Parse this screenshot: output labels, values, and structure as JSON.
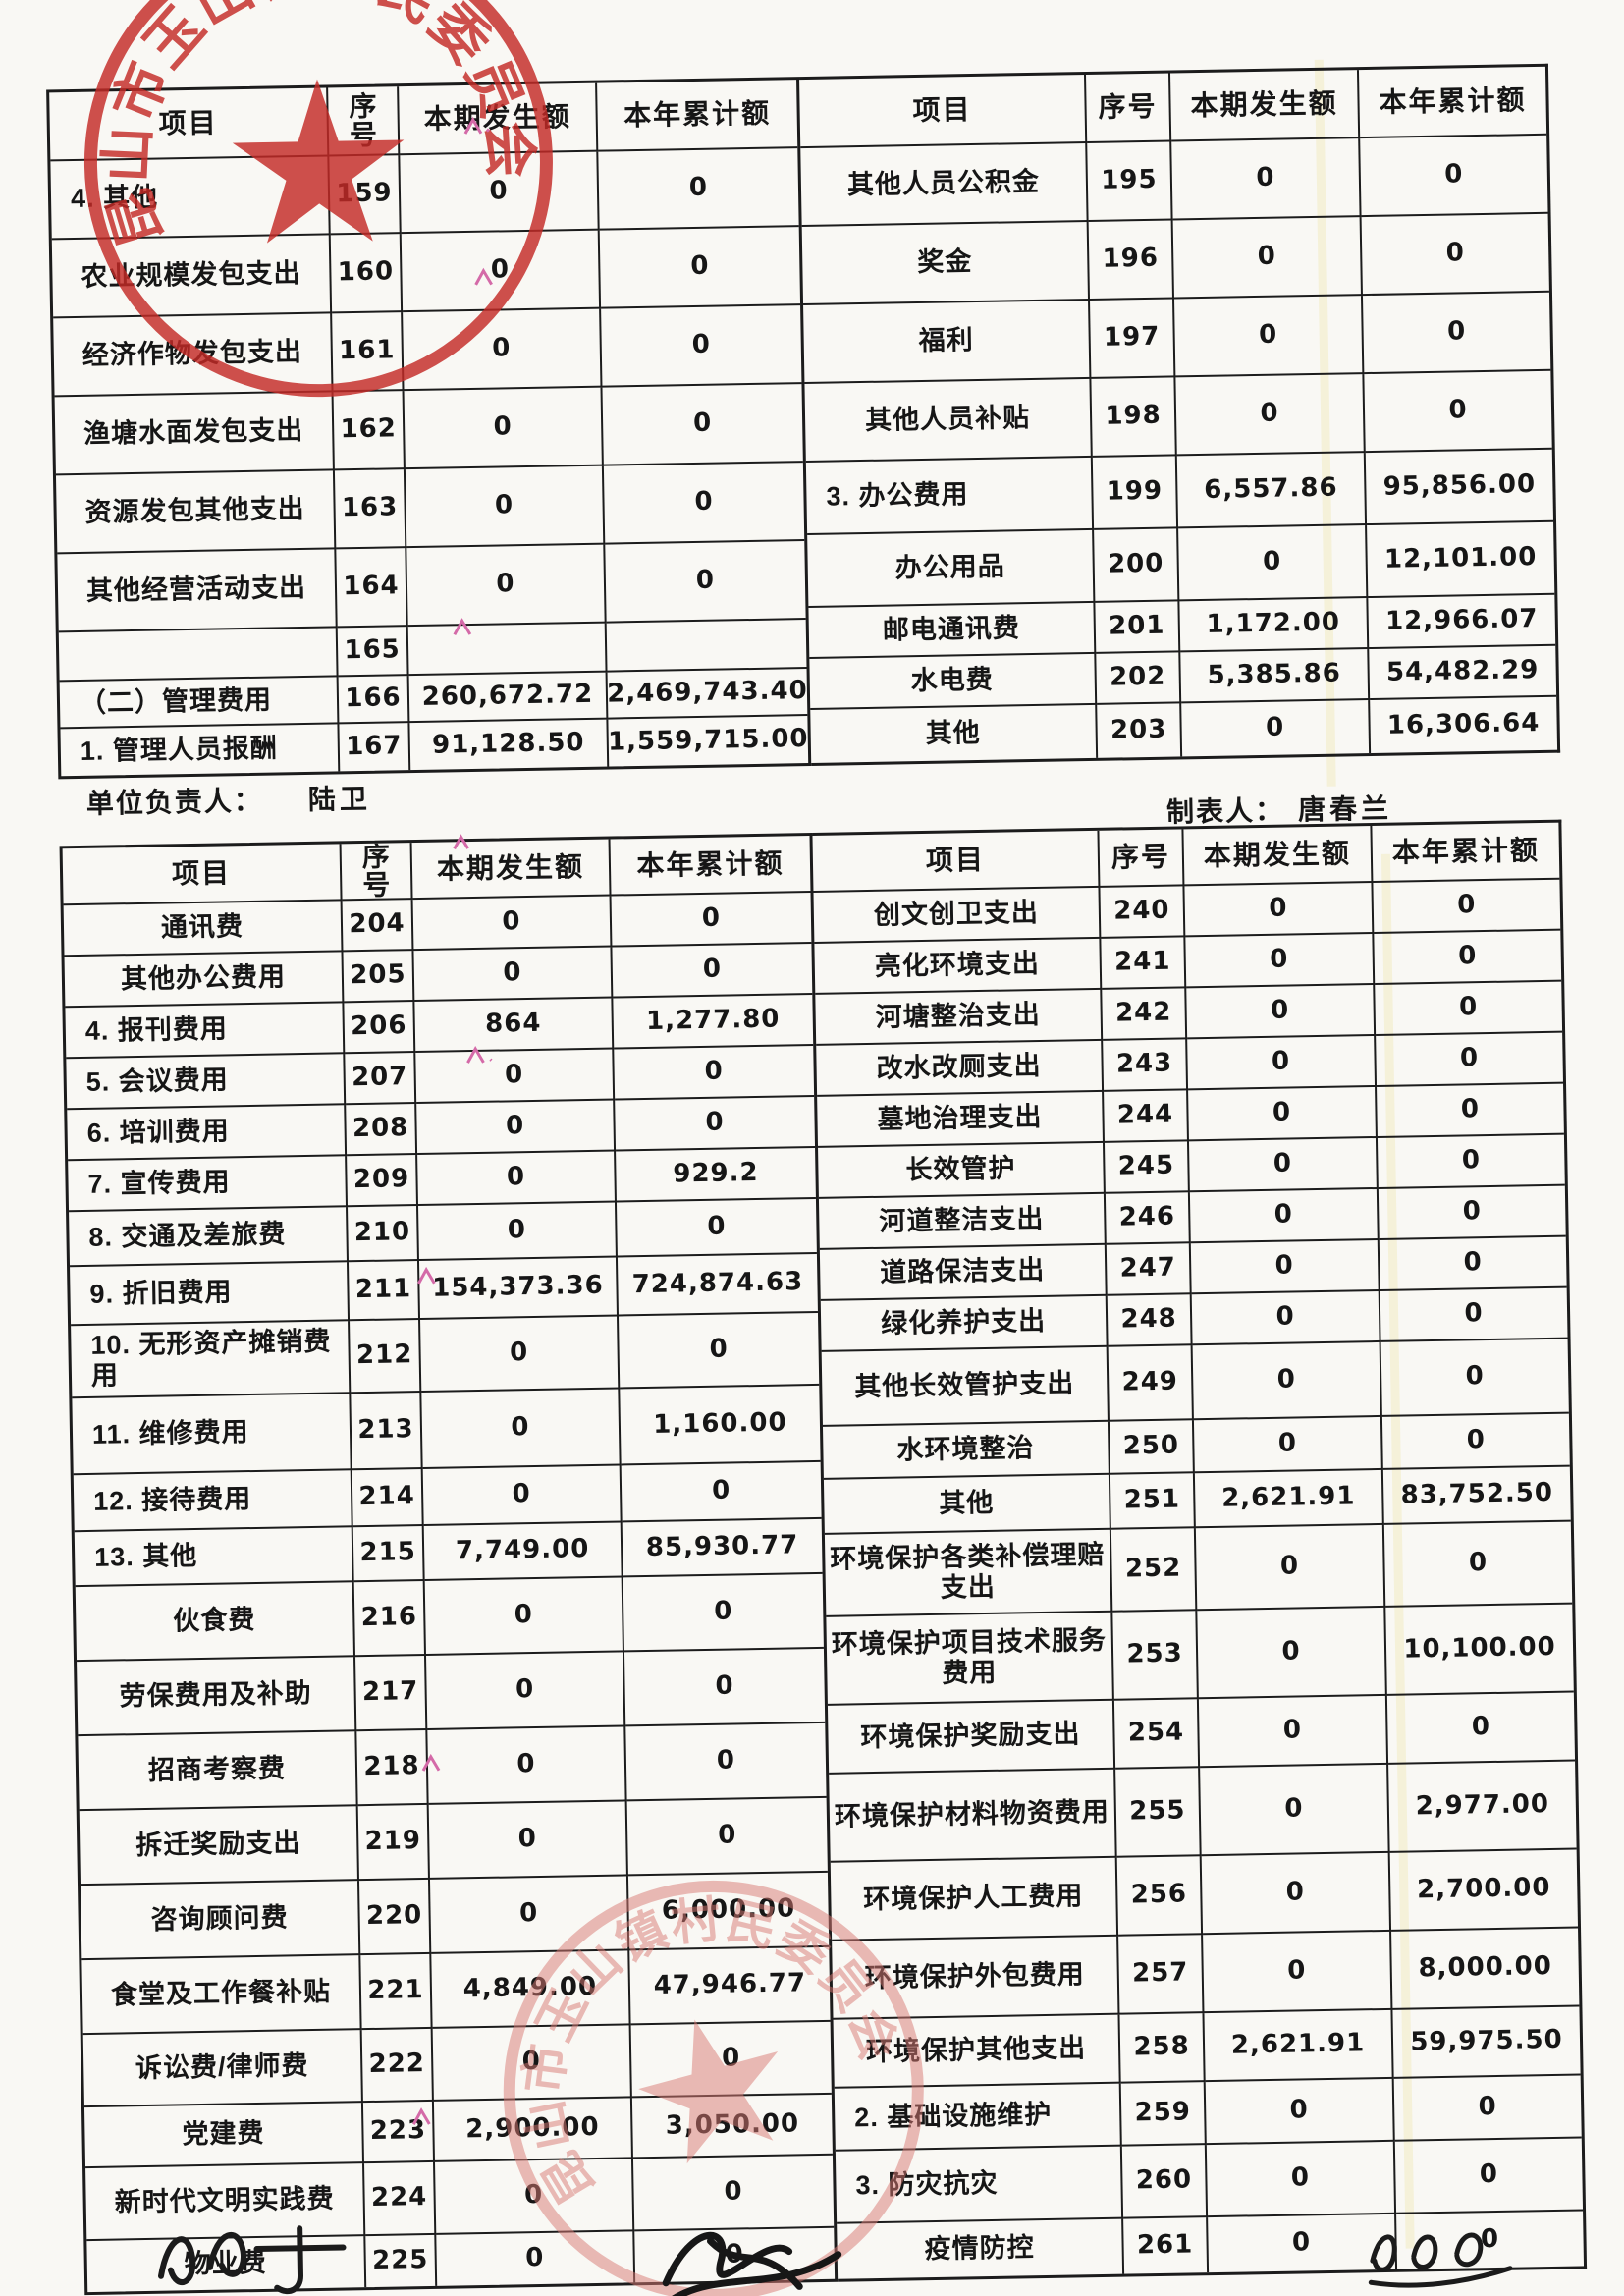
{
  "page": {
    "unit_head_label": "单位负责人：",
    "unit_head_name": "陆卫",
    "preparer_label": "制表人：",
    "preparer_name": "唐春兰",
    "stamp_text": "昆山市玉山镇村民委员会"
  },
  "headers": {
    "item": "项目",
    "seq": "序号",
    "seq_stacked": "序\n号",
    "current": "本期发生额",
    "ytd": "本年累计额"
  },
  "table1": {
    "left": [
      {
        "item": "4. 其他",
        "no": "159",
        "cur": "0",
        "ytd": "0"
      },
      {
        "item": "农业规模发包支出",
        "no": "160",
        "cur": "0",
        "ytd": "0"
      },
      {
        "item": "经济作物发包支出",
        "no": "161",
        "cur": "0",
        "ytd": "0"
      },
      {
        "item": "渔塘水面发包支出",
        "no": "162",
        "cur": "0",
        "ytd": "0"
      },
      {
        "item": "资源发包其他支出",
        "no": "163",
        "cur": "0",
        "ytd": "0"
      },
      {
        "item": "其他经营活动支出",
        "no": "164",
        "cur": "0",
        "ytd": "0"
      },
      {
        "item": "",
        "no": "165",
        "cur": "",
        "ytd": ""
      },
      {
        "item": "（二）管理费用",
        "no": "166",
        "cur": "260,672.72",
        "ytd": "2,469,743.40"
      },
      {
        "item": "1. 管理人员报酬",
        "no": "167",
        "cur": "91,128.50",
        "ytd": "1,559,715.00"
      }
    ],
    "right": [
      {
        "item": "其他人员公积金",
        "no": "195",
        "cur": "0",
        "ytd": "0"
      },
      {
        "item": "奖金",
        "no": "196",
        "cur": "0",
        "ytd": "0"
      },
      {
        "item": "福利",
        "no": "197",
        "cur": "0",
        "ytd": "0"
      },
      {
        "item": "其他人员补贴",
        "no": "198",
        "cur": "0",
        "ytd": "0"
      },
      {
        "item": "3. 办公费用",
        "no": "199",
        "cur": "6,557.86",
        "ytd": "95,856.00"
      },
      {
        "item": "办公用品",
        "no": "200",
        "cur": "0",
        "ytd": "12,101.00"
      },
      {
        "item": "邮电通讯费",
        "no": "201",
        "cur": "1,172.00",
        "ytd": "12,966.07"
      },
      {
        "item": "水电费",
        "no": "202",
        "cur": "5,385.86",
        "ytd": "54,482.29"
      },
      {
        "item": "其他",
        "no": "203",
        "cur": "0",
        "ytd": "16,306.64"
      }
    ]
  },
  "table2": {
    "left": [
      {
        "item": "通讯费",
        "no": "204",
        "cur": "0",
        "ytd": "0"
      },
      {
        "item": "其他办公费用",
        "no": "205",
        "cur": "0",
        "ytd": "0"
      },
      {
        "item": "4. 报刊费用",
        "no": "206",
        "cur": "864",
        "ytd": "1,277.80"
      },
      {
        "item": "5. 会议费用",
        "no": "207",
        "cur": "0",
        "ytd": "0"
      },
      {
        "item": "6. 培训费用",
        "no": "208",
        "cur": "0",
        "ytd": "0"
      },
      {
        "item": "7. 宣传费用",
        "no": "209",
        "cur": "0",
        "ytd": "929.2"
      },
      {
        "item": "8. 交通及差旅费",
        "no": "210",
        "cur": "0",
        "ytd": "0"
      },
      {
        "item": "9. 折旧费用",
        "no": "211",
        "cur": "154,373.36",
        "ytd": "724,874.63"
      },
      {
        "item": "10. 无形资产摊销费用",
        "no": "212",
        "cur": "0",
        "ytd": "0"
      },
      {
        "item": "11. 维修费用",
        "no": "213",
        "cur": "0",
        "ytd": "1,160.00"
      },
      {
        "item": "12. 接待费用",
        "no": "214",
        "cur": "0",
        "ytd": "0"
      },
      {
        "item": "13. 其他",
        "no": "215",
        "cur": "7,749.00",
        "ytd": "85,930.77"
      },
      {
        "item": "伙食费",
        "no": "216",
        "cur": "0",
        "ytd": "0"
      },
      {
        "item": "劳保费用及补助",
        "no": "217",
        "cur": "0",
        "ytd": "0"
      },
      {
        "item": "招商考察费",
        "no": "218",
        "cur": "0",
        "ytd": "0"
      },
      {
        "item": "拆迁奖励支出",
        "no": "219",
        "cur": "0",
        "ytd": "0"
      },
      {
        "item": "咨询顾问费",
        "no": "220",
        "cur": "0",
        "ytd": "6,000.00"
      },
      {
        "item": "食堂及工作餐补贴",
        "no": "221",
        "cur": "4,849.00",
        "ytd": "47,946.77"
      },
      {
        "item": "诉讼费/律师费",
        "no": "222",
        "cur": "0",
        "ytd": "0"
      },
      {
        "item": "党建费",
        "no": "223",
        "cur": "2,900.00",
        "ytd": "3,050.00"
      },
      {
        "item": "新时代文明实践费",
        "no": "224",
        "cur": "0",
        "ytd": "0"
      },
      {
        "item": "物业费",
        "no": "225",
        "cur": "0",
        "ytd": "0"
      }
    ],
    "right": [
      {
        "item": "创文创卫支出",
        "no": "240",
        "cur": "0",
        "ytd": "0"
      },
      {
        "item": "亮化环境支出",
        "no": "241",
        "cur": "0",
        "ytd": "0"
      },
      {
        "item": "河塘整治支出",
        "no": "242",
        "cur": "0",
        "ytd": "0"
      },
      {
        "item": "改水改厕支出",
        "no": "243",
        "cur": "0",
        "ytd": "0"
      },
      {
        "item": "墓地治理支出",
        "no": "244",
        "cur": "0",
        "ytd": "0"
      },
      {
        "item": "长效管护",
        "no": "245",
        "cur": "0",
        "ytd": "0"
      },
      {
        "item": "河道整洁支出",
        "no": "246",
        "cur": "0",
        "ytd": "0"
      },
      {
        "item": "道路保洁支出",
        "no": "247",
        "cur": "0",
        "ytd": "0"
      },
      {
        "item": "绿化养护支出",
        "no": "248",
        "cur": "0",
        "ytd": "0"
      },
      {
        "item": "其他长效管护支出",
        "no": "249",
        "cur": "0",
        "ytd": "0"
      },
      {
        "item": "水环境整治",
        "no": "250",
        "cur": "0",
        "ytd": "0"
      },
      {
        "item": "其他",
        "no": "251",
        "cur": "2,621.91",
        "ytd": "83,752.50"
      },
      {
        "item": "环境保护各类补偿理赔支出",
        "no": "252",
        "cur": "0",
        "ytd": "0"
      },
      {
        "item": "环境保护项目技术服务费用",
        "no": "253",
        "cur": "0",
        "ytd": "10,100.00"
      },
      {
        "item": "环境保护奖励支出",
        "no": "254",
        "cur": "0",
        "ytd": "0"
      },
      {
        "item": "环境保护材料物资费用",
        "no": "255",
        "cur": "0",
        "ytd": "2,977.00"
      },
      {
        "item": "环境保护人工费用",
        "no": "256",
        "cur": "0",
        "ytd": "2,700.00"
      },
      {
        "item": "环境保护外包费用",
        "no": "257",
        "cur": "0",
        "ytd": "8,000.00"
      },
      {
        "item": "环境保护其他支出",
        "no": "258",
        "cur": "2,621.91",
        "ytd": "59,975.50"
      },
      {
        "item": "2. 基础设施维护",
        "no": "259",
        "cur": "0",
        "ytd": "0"
      },
      {
        "item": "3. 防灾抗灾",
        "no": "260",
        "cur": "0",
        "ytd": "0"
      },
      {
        "item": "疫情防控",
        "no": "261",
        "cur": "0",
        "ytd": "0"
      }
    ]
  },
  "colors": {
    "stamp_red": "#c42a26",
    "stamp_red_faded": "#d97a74",
    "ink": "#161616",
    "pink_artifact": "#d46aa8"
  }
}
